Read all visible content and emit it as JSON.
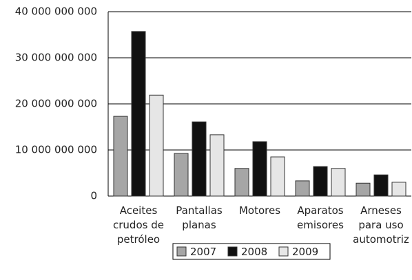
{
  "chart_data": {
    "type": "bar",
    "categories": [
      "Aceites crudos de petróleo",
      "Pantallas planas",
      "Motores",
      "Aparatos emisores",
      "Arneses para uso automotriz"
    ],
    "series": [
      {
        "name": "2007",
        "color": "#a6a6a6",
        "values": [
          17300000000,
          9250000000,
          6000000000,
          3300000000,
          2800000000
        ]
      },
      {
        "name": "2008",
        "color": "#111111",
        "values": [
          35700000000,
          16100000000,
          11800000000,
          6400000000,
          4600000000
        ]
      },
      {
        "name": "2009",
        "color": "#e6e6e6",
        "values": [
          21900000000,
          13300000000,
          8500000000,
          6000000000,
          3000000000
        ]
      }
    ],
    "ylim": [
      0,
      40000000000
    ],
    "yticks": [
      0,
      {
        "value": 10000000000,
        "label": "10 000 000 000"
      },
      {
        "value": 20000000000,
        "label": "20 000 000 000"
      },
      {
        "value": 30000000000,
        "label": "30 000 000 000"
      },
      {
        "value": 40000000000,
        "label": "40 000 000 000"
      }
    ],
    "grid": true,
    "legend": "bottom"
  }
}
